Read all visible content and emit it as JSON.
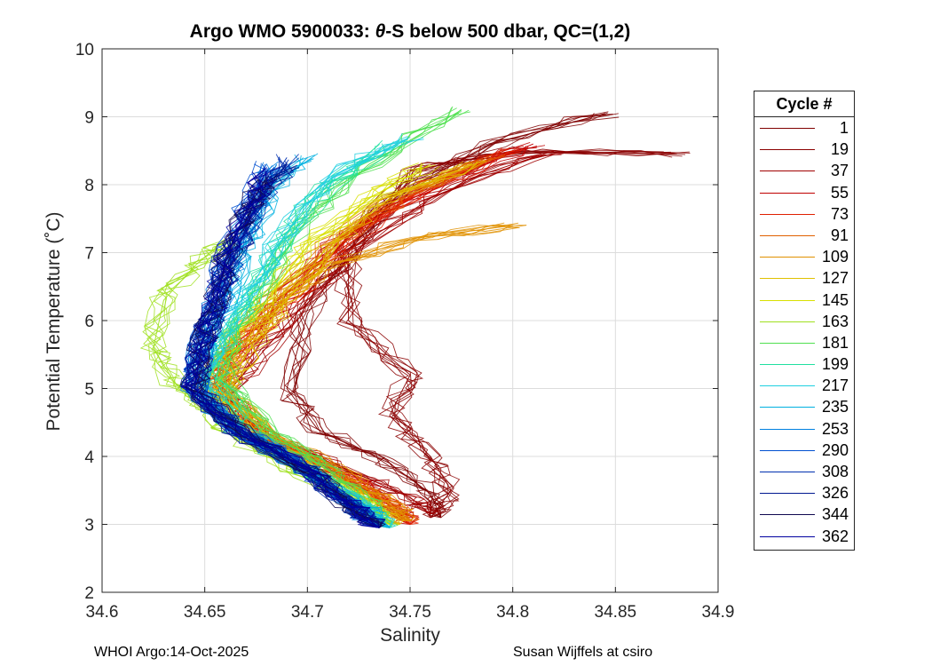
{
  "chart_data": {
    "type": "line",
    "title": "Argo WMO 5900033: θ-S below 500 dbar,  QC=(1,2)",
    "title_prefix": "Argo WMO 5900033: ",
    "title_theta": "θ",
    "title_suffix": "-S below 500 dbar,  QC=(1,2)",
    "xlabel": "Salinity",
    "ylabel": "Potential Temperature (˚C)",
    "xlim": [
      34.6,
      34.9
    ],
    "ylim": [
      2,
      10
    ],
    "xticks": [
      "34.6",
      "34.65",
      "34.7",
      "34.75",
      "34.8",
      "34.85",
      "34.9"
    ],
    "yticks": [
      "2",
      "3",
      "4",
      "5",
      "6",
      "7",
      "8",
      "9",
      "10"
    ],
    "grid": true,
    "legend_title": "Cycle #",
    "legend_position": "right-outside",
    "series": [
      {
        "name": "1",
        "color": "#800000",
        "x": [
          34.845,
          34.79,
          34.74,
          34.72,
          34.7,
          34.69,
          34.705,
          34.74,
          34.76,
          34.765
        ],
        "y": [
          9.05,
          8.6,
          7.8,
          7.0,
          6.1,
          5.0,
          4.4,
          3.9,
          3.45,
          3.1
        ]
      },
      {
        "name": "19",
        "color": "#8b0000",
        "x": [
          34.88,
          34.8,
          34.75,
          34.72,
          34.72,
          34.75,
          34.74,
          34.76,
          34.77,
          34.76
        ],
        "y": [
          8.45,
          8.5,
          8.2,
          7.0,
          6.0,
          5.2,
          4.6,
          4.0,
          3.5,
          3.1
        ]
      },
      {
        "name": "37",
        "color": "#a00000",
        "x": [
          34.82,
          34.77,
          34.73,
          34.7,
          34.68,
          34.66,
          34.68,
          34.72,
          34.75,
          34.76
        ],
        "y": [
          8.5,
          8.0,
          7.2,
          6.3,
          5.6,
          4.9,
          4.3,
          3.8,
          3.4,
          3.15
        ]
      },
      {
        "name": "55",
        "color": "#c00000",
        "x": [
          34.81,
          34.77,
          34.72,
          34.69,
          34.67,
          34.655,
          34.68,
          34.72,
          34.74,
          34.75
        ],
        "y": [
          8.6,
          8.1,
          7.3,
          6.4,
          5.6,
          5.0,
          4.3,
          3.7,
          3.3,
          3.0
        ]
      },
      {
        "name": "73",
        "color": "#e02000",
        "x": [
          34.8,
          34.76,
          34.72,
          34.69,
          34.665,
          34.65,
          34.67,
          34.71,
          34.74,
          34.75
        ],
        "y": [
          8.5,
          8.0,
          7.2,
          6.3,
          5.6,
          5.1,
          4.4,
          3.8,
          3.3,
          3.0
        ]
      },
      {
        "name": "91",
        "color": "#e06000",
        "x": [
          34.79,
          34.75,
          34.71,
          34.68,
          34.66,
          34.655,
          34.68,
          34.72,
          34.74,
          34.75
        ],
        "y": [
          8.4,
          7.9,
          7.1,
          6.3,
          5.5,
          5.0,
          4.3,
          3.7,
          3.3,
          3.05
        ]
      },
      {
        "name": "109",
        "color": "#e09000",
        "x": [
          34.8,
          34.75,
          34.71,
          34.68,
          34.665,
          34.66,
          34.69,
          34.72,
          34.74,
          34.75
        ],
        "y": [
          7.4,
          7.2,
          6.8,
          6.1,
          5.5,
          4.9,
          4.2,
          3.7,
          3.3,
          3.05
        ]
      },
      {
        "name": "127",
        "color": "#e0c000",
        "x": [
          34.78,
          34.74,
          34.71,
          34.69,
          34.67,
          34.66,
          34.68,
          34.71,
          34.73,
          34.745
        ],
        "y": [
          8.3,
          7.8,
          7.1,
          6.3,
          5.5,
          5.0,
          4.3,
          3.7,
          3.3,
          3.0
        ]
      },
      {
        "name": "145",
        "color": "#d8e000",
        "x": [
          34.76,
          34.73,
          34.7,
          34.68,
          34.66,
          34.65,
          34.67,
          34.7,
          34.73,
          34.74
        ],
        "y": [
          8.3,
          7.8,
          7.1,
          6.3,
          5.6,
          5.0,
          4.3,
          3.8,
          3.3,
          3.0
        ]
      },
      {
        "name": "163",
        "color": "#a0e020",
        "x": [
          34.66,
          34.645,
          34.63,
          34.625,
          34.635,
          34.65,
          34.67,
          34.7,
          34.725,
          34.74
        ],
        "y": [
          7.2,
          6.8,
          6.3,
          5.6,
          5.1,
          4.7,
          4.2,
          3.7,
          3.3,
          2.95
        ]
      },
      {
        "name": "181",
        "color": "#50e050",
        "x": [
          34.775,
          34.73,
          34.7,
          34.68,
          34.665,
          34.66,
          34.68,
          34.71,
          34.73,
          34.74
        ],
        "y": [
          9.1,
          8.3,
          7.5,
          6.6,
          5.8,
          5.1,
          4.4,
          3.8,
          3.3,
          2.95
        ]
      },
      {
        "name": "199",
        "color": "#20e0a0",
        "x": [
          34.74,
          34.71,
          34.69,
          34.675,
          34.66,
          34.655,
          34.67,
          34.7,
          34.725,
          34.74
        ],
        "y": [
          8.6,
          8.0,
          7.3,
          6.5,
          5.7,
          5.1,
          4.4,
          3.8,
          3.3,
          2.95
        ]
      },
      {
        "name": "217",
        "color": "#20d0e0",
        "x": [
          34.75,
          34.71,
          34.69,
          34.67,
          34.655,
          34.65,
          34.665,
          34.7,
          34.725,
          34.74
        ],
        "y": [
          8.7,
          8.1,
          7.3,
          6.4,
          5.7,
          5.0,
          4.4,
          3.8,
          3.3,
          2.95
        ]
      },
      {
        "name": "235",
        "color": "#00b0e0",
        "x": [
          34.7,
          34.68,
          34.67,
          34.66,
          34.65,
          34.645,
          34.665,
          34.7,
          34.725,
          34.74
        ],
        "y": [
          8.4,
          7.8,
          7.1,
          6.3,
          5.6,
          5.0,
          4.4,
          3.8,
          3.3,
          2.95
        ]
      },
      {
        "name": "253",
        "color": "#0080e0",
        "x": [
          34.685,
          34.675,
          34.665,
          34.655,
          34.648,
          34.645,
          34.665,
          34.7,
          34.72,
          34.735
        ],
        "y": [
          8.3,
          7.7,
          7.0,
          6.2,
          5.6,
          5.0,
          4.4,
          3.8,
          3.3,
          2.95
        ]
      },
      {
        "name": "290",
        "color": "#0050d0",
        "x": [
          34.68,
          34.67,
          34.66,
          34.655,
          34.648,
          34.645,
          34.665,
          34.7,
          34.72,
          34.735
        ],
        "y": [
          8.3,
          7.6,
          6.9,
          6.2,
          5.6,
          5.0,
          4.4,
          3.8,
          3.3,
          2.95
        ]
      },
      {
        "name": "308",
        "color": "#0030b0",
        "x": [
          34.69,
          34.675,
          34.665,
          34.655,
          34.648,
          34.645,
          34.665,
          34.7,
          34.72,
          34.735
        ],
        "y": [
          8.4,
          7.7,
          7.0,
          6.2,
          5.6,
          5.0,
          4.4,
          3.8,
          3.3,
          2.95
        ]
      },
      {
        "name": "326",
        "color": "#001890",
        "x": [
          34.69,
          34.675,
          34.665,
          34.655,
          34.648,
          34.645,
          34.665,
          34.7,
          34.72,
          34.735
        ],
        "y": [
          8.3,
          7.7,
          7.0,
          6.2,
          5.6,
          5.0,
          4.4,
          3.8,
          3.3,
          2.95
        ]
      },
      {
        "name": "344",
        "color": "#100850",
        "x": [
          34.68,
          34.67,
          34.66,
          34.655,
          34.648,
          34.645,
          34.665,
          34.7,
          34.72,
          34.735
        ],
        "y": [
          8.1,
          7.6,
          6.9,
          6.2,
          5.6,
          5.0,
          4.4,
          3.8,
          3.3,
          2.95
        ]
      },
      {
        "name": "362",
        "color": "#0000a0",
        "x": [
          34.68,
          34.67,
          34.66,
          34.655,
          34.648,
          34.645,
          34.665,
          34.7,
          34.72,
          34.735
        ],
        "y": [
          8.2,
          7.6,
          6.9,
          6.2,
          5.6,
          5.0,
          4.4,
          3.8,
          3.3,
          2.95
        ]
      }
    ]
  },
  "footer": {
    "left": "WHOI Argo:14-Oct-2025",
    "right": "Susan Wijffels at csiro"
  }
}
